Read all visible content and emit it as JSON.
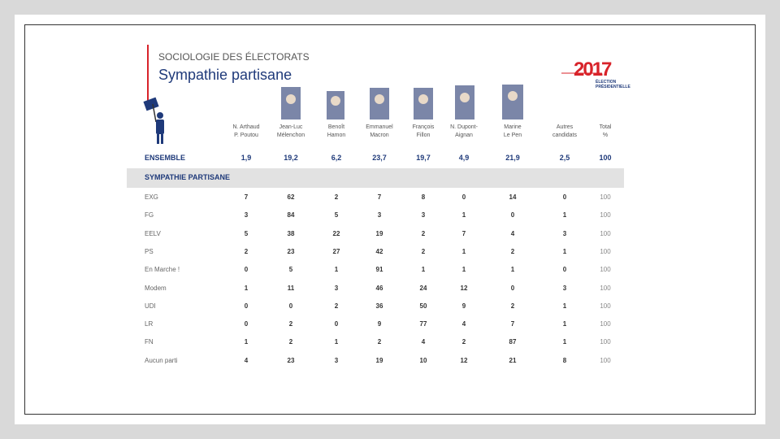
{
  "header": {
    "kicker": "SOCIOLOGIE DES ÉLECTORATS",
    "title": "Sympathie partisane"
  },
  "logo": {
    "year": "2017",
    "caption": [
      "ÉLECTION",
      "PRÉSIDENTIELLE"
    ]
  },
  "table": {
    "columns": [
      [
        "N. Arthaud",
        "P. Poutou"
      ],
      [
        "Jean-Luc",
        "Mélenchon"
      ],
      [
        "Benoît",
        "Hamon"
      ],
      [
        "Emmanuel",
        "Macron"
      ],
      [
        "François",
        "Fillon"
      ],
      [
        "N. Dupont-",
        "Aignan"
      ],
      [
        "Marine",
        "Le Pen"
      ],
      [
        "Autres",
        "candidats"
      ],
      [
        "Total",
        "%"
      ]
    ],
    "total_row": {
      "label": "ENSEMBLE",
      "values": [
        "1,9",
        "19,2",
        "6,2",
        "23,7",
        "19,7",
        "4,9",
        "21,9",
        "2,5",
        "100"
      ]
    },
    "section": "SYMPATHIE PARTISANE",
    "rows": [
      {
        "label": "EXG",
        "values": [
          7,
          62,
          2,
          7,
          8,
          0,
          14,
          0,
          100
        ]
      },
      {
        "label": "FG",
        "values": [
          3,
          84,
          5,
          3,
          3,
          1,
          0,
          1,
          100
        ]
      },
      {
        "label": "EELV",
        "values": [
          5,
          38,
          22,
          19,
          2,
          7,
          4,
          3,
          100
        ]
      },
      {
        "label": "PS",
        "values": [
          2,
          23,
          27,
          42,
          2,
          1,
          2,
          1,
          100
        ]
      },
      {
        "label": "En Marche !",
        "values": [
          0,
          5,
          1,
          91,
          1,
          1,
          1,
          0,
          100
        ]
      },
      {
        "label": "Modem",
        "values": [
          1,
          11,
          3,
          46,
          24,
          12,
          0,
          3,
          100
        ]
      },
      {
        "label": "UDI",
        "values": [
          0,
          0,
          2,
          36,
          50,
          9,
          2,
          1,
          100
        ]
      },
      {
        "label": "LR",
        "values": [
          0,
          2,
          0,
          9,
          77,
          4,
          7,
          1,
          100
        ]
      },
      {
        "label": "FN",
        "values": [
          1,
          2,
          1,
          2,
          4,
          2,
          87,
          1,
          100
        ]
      },
      {
        "label": "Aucun parti",
        "values": [
          4,
          23,
          3,
          19,
          10,
          12,
          21,
          8,
          100
        ]
      }
    ]
  }
}
